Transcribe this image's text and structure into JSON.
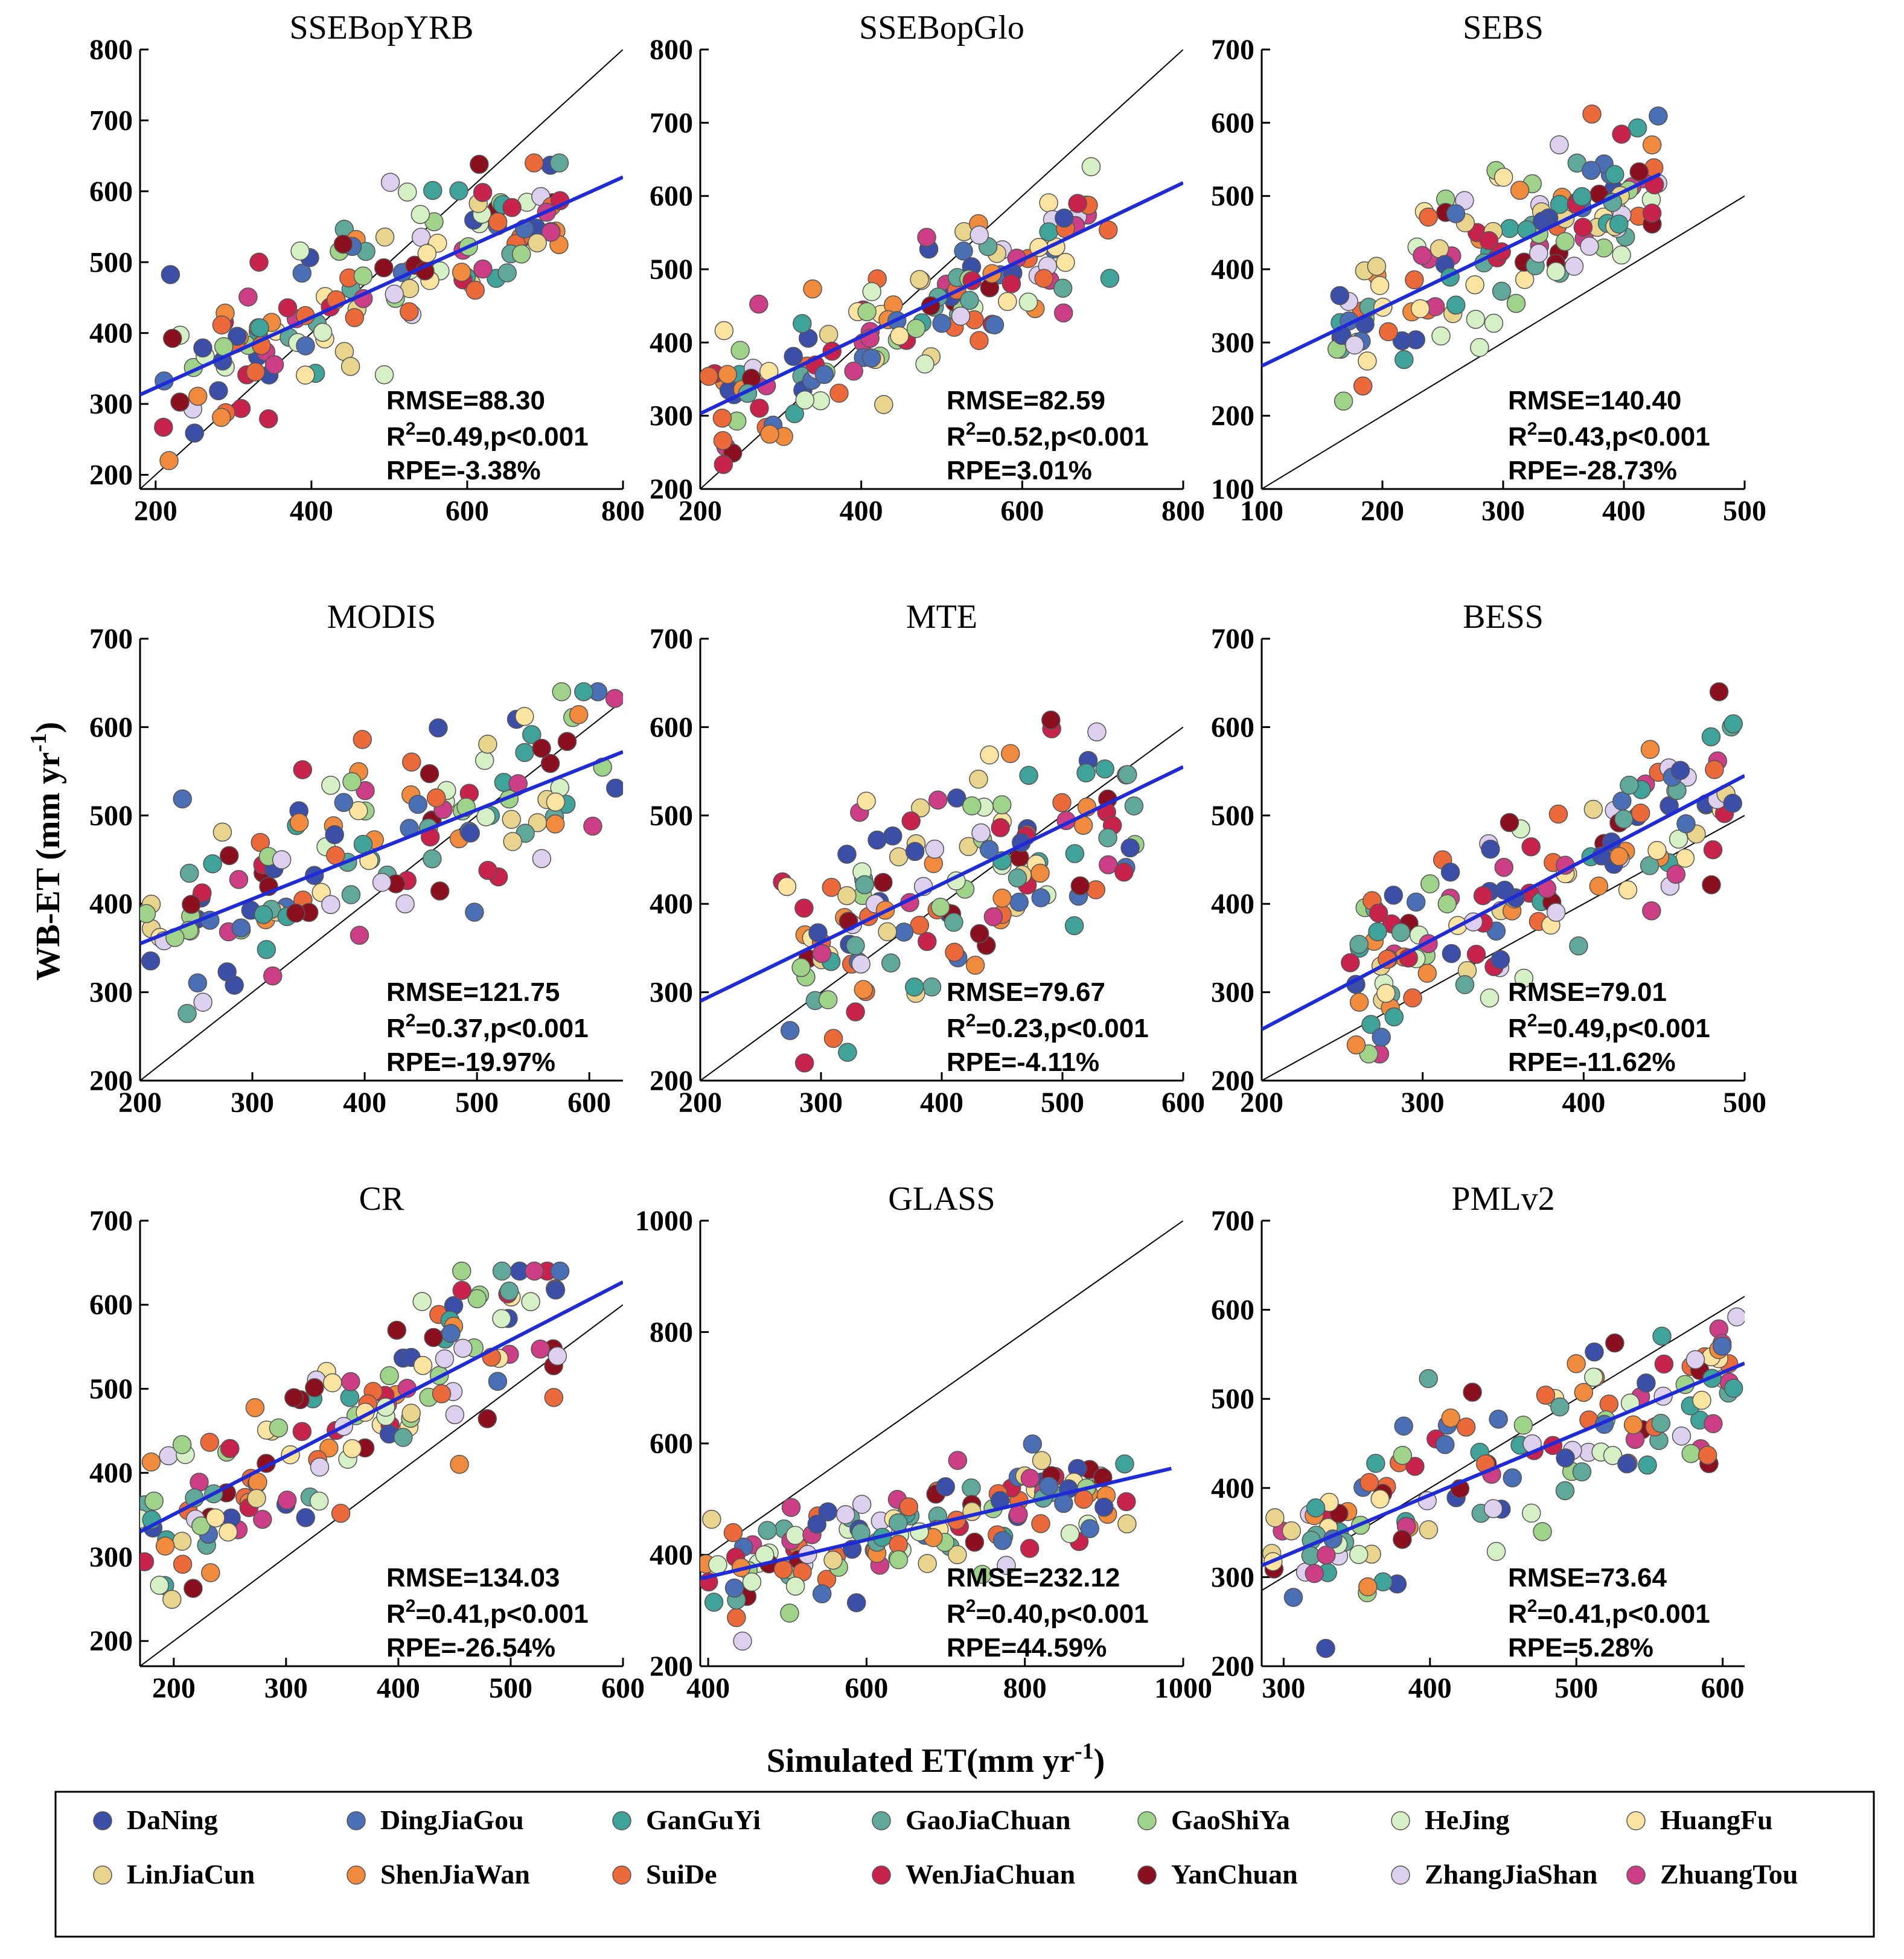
{
  "figure": {
    "xlabel": "Simulated ET(mm yr",
    "xlabel_sup": "-1",
    "xlabel_end": ")",
    "ylabel": "WB-ET (mm yr",
    "ylabel_sup": "-1",
    "ylabel_end": ")"
  },
  "legend": {
    "entries": [
      {
        "name": "DaNing",
        "color": "#3b4fa8"
      },
      {
        "name": "DingJiaGou",
        "color": "#4a6fb5"
      },
      {
        "name": "GanGuYi",
        "color": "#3fa39a"
      },
      {
        "name": "GaoJiaChuan",
        "color": "#5fa89a"
      },
      {
        "name": "GaoShiYa",
        "color": "#9fd38a"
      },
      {
        "name": "HeJing",
        "color": "#d6f0c6"
      },
      {
        "name": "HuangFu",
        "color": "#fbe3a0"
      },
      {
        "name": "LinJiaCun",
        "color": "#e8d48c"
      },
      {
        "name": "ShenJiaWan",
        "color": "#f08a3c"
      },
      {
        "name": "SuiDe",
        "color": "#ec6a3a"
      },
      {
        "name": "WenJiaChuan",
        "color": "#c8234d"
      },
      {
        "name": "YanChuan",
        "color": "#8a1020"
      },
      {
        "name": "ZhangJiaShan",
        "color": "#dcd0ee"
      },
      {
        "name": "ZhuangTou",
        "color": "#cc3f87"
      }
    ]
  },
  "chart_data": [
    {
      "type": "scatter",
      "title": "SSEBopYRB",
      "xlim": [
        180,
        800
      ],
      "ylim": [
        180,
        800
      ],
      "xticks": [
        200,
        400,
        600,
        800
      ],
      "yticks": [
        200,
        300,
        400,
        500,
        600,
        700,
        800
      ],
      "fit": {
        "x1": 180,
        "y1": 313,
        "x2": 800,
        "y2": 620
      },
      "stats": {
        "rmse": "RMSE=88.30",
        "r2_prefix": "R",
        "r2_sup": "2",
        "r2_rest": "=0.49,p<0.001",
        "rpe": "RPE=-3.38%"
      },
      "seed": 11,
      "n": 140,
      "xr": [
        180,
        720
      ],
      "yr": [
        220,
        640
      ],
      "noise": 75,
      "fit_slope": 0.495,
      "fit_intercept": 224
    },
    {
      "type": "scatter",
      "title": "SSEBopGlo",
      "xlim": [
        200,
        800
      ],
      "ylim": [
        200,
        800
      ],
      "xticks": [
        200,
        400,
        600,
        800
      ],
      "yticks": [
        200,
        300,
        400,
        500,
        600,
        700,
        800
      ],
      "fit": {
        "x1": 200,
        "y1": 303,
        "x2": 800,
        "y2": 618
      },
      "stats": {
        "rmse": "RMSE=82.59",
        "r2_prefix": "R",
        "r2_sup": "2",
        "r2_rest": "=0.52,p<0.001",
        "rpe": "RPE=3.01%"
      },
      "seed": 23,
      "n": 140,
      "xr": [
        210,
        710
      ],
      "yr": [
        220,
        640
      ],
      "noise": 70,
      "fit_slope": 0.525,
      "fit_intercept": 198
    },
    {
      "type": "scatter",
      "title": "SEBS",
      "xlim": [
        100,
        500
      ],
      "ylim": [
        100,
        700
      ],
      "xticks": [
        100,
        200,
        300,
        400,
        500
      ],
      "yticks": [
        100,
        200,
        300,
        400,
        500,
        600,
        700
      ],
      "fit": {
        "x1": 100,
        "y1": 268,
        "x2": 430,
        "y2": 530
      },
      "stats": {
        "rmse": "RMSE=140.40",
        "r2_prefix": "R",
        "r2_sup": "2",
        "r2_rest": "=0.43,p<0.001",
        "rpe": "RPE=-28.73%"
      },
      "seed": 37,
      "n": 140,
      "xr": [
        160,
        430
      ],
      "yr": [
        220,
        640
      ],
      "noise": 70,
      "fit_slope": 0.794,
      "fit_intercept": 189
    },
    {
      "type": "scatter",
      "title": "MODIS",
      "xlim": [
        200,
        630
      ],
      "ylim": [
        200,
        700
      ],
      "xticks": [
        200,
        300,
        400,
        500,
        600
      ],
      "yticks": [
        200,
        300,
        400,
        500,
        600,
        700
      ],
      "fit": {
        "x1": 200,
        "y1": 355,
        "x2": 630,
        "y2": 572
      },
      "stats": {
        "rmse": "RMSE=121.75",
        "r2_prefix": "R",
        "r2_sup": "2",
        "r2_rest": "=0.37,p<0.001",
        "rpe": "RPE=-19.97%"
      },
      "seed": 41,
      "n": 140,
      "xr": [
        200,
        625
      ],
      "yr": [
        220,
        640
      ],
      "noise": 75,
      "fit_slope": 0.505,
      "fit_intercept": 254
    },
    {
      "type": "scatter",
      "title": "MTE",
      "xlim": [
        200,
        600
      ],
      "ylim": [
        200,
        700
      ],
      "xticks": [
        200,
        300,
        400,
        500,
        600
      ],
      "yticks": [
        200,
        300,
        400,
        500,
        600,
        700
      ],
      "fit": {
        "x1": 200,
        "y1": 290,
        "x2": 600,
        "y2": 555
      },
      "stats": {
        "rmse": "RMSE=79.67",
        "r2_prefix": "R",
        "r2_sup": "2",
        "r2_rest": "=0.23,p<0.001",
        "rpe": "RPE=-4.11%"
      },
      "seed": 53,
      "n": 140,
      "xr": [
        260,
        560
      ],
      "yr": [
        220,
        640
      ],
      "noise": 85,
      "fit_slope": 0.662,
      "fit_intercept": 158
    },
    {
      "type": "scatter",
      "title": "BESS",
      "xlim": [
        200,
        500
      ],
      "ylim": [
        200,
        700
      ],
      "xticks": [
        200,
        300,
        400,
        500
      ],
      "yticks": [
        200,
        300,
        400,
        500,
        600,
        700
      ],
      "fit": {
        "x1": 200,
        "y1": 258,
        "x2": 500,
        "y2": 545
      },
      "stats": {
        "rmse": "RMSE=79.01",
        "r2_prefix": "R",
        "r2_sup": "2",
        "r2_rest": "=0.49,p<0.001",
        "rpe": "RPE=-11.62%"
      },
      "seed": 67,
      "n": 140,
      "xr": [
        255,
        495
      ],
      "yr": [
        220,
        640
      ],
      "noise": 65,
      "fit_slope": 0.957,
      "fit_intercept": 67
    },
    {
      "type": "scatter",
      "title": "CR",
      "xlim": [
        170,
        600
      ],
      "ylim": [
        170,
        700
      ],
      "xticks": [
        200,
        300,
        400,
        500,
        600
      ],
      "yticks": [
        200,
        300,
        400,
        500,
        600,
        700
      ],
      "fit": {
        "x1": 170,
        "y1": 330,
        "x2": 600,
        "y2": 627
      },
      "stats": {
        "rmse": "RMSE=134.03",
        "r2_prefix": "R",
        "r2_sup": "2",
        "r2_rest": "=0.41,p<0.001",
        "rpe": "RPE=-26.54%"
      },
      "seed": 71,
      "n": 140,
      "xr": [
        170,
        545
      ],
      "yr": [
        220,
        640
      ],
      "noise": 70,
      "fit_slope": 0.69,
      "fit_intercept": 213
    },
    {
      "type": "scatter",
      "title": "GLASS",
      "xlim": [
        390,
        1000
      ],
      "ylim": [
        200,
        1000
      ],
      "xticks": [
        400,
        600,
        800,
        1000
      ],
      "yticks": [
        200,
        400,
        600,
        800,
        1000
      ],
      "fit": {
        "x1": 390,
        "y1": 357,
        "x2": 985,
        "y2": 555
      },
      "stats": {
        "rmse": "RMSE=232.12",
        "r2_prefix": "R",
        "r2_sup": "2",
        "r2_rest": "=0.40,p<0.001",
        "rpe": "RPE=44.59%"
      },
      "seed": 83,
      "n": 140,
      "xr": [
        395,
        930
      ],
      "yr": [
        220,
        640
      ],
      "noise": 65,
      "fit_slope": 0.333,
      "fit_intercept": 227
    },
    {
      "type": "scatter",
      "title": "PMLv2",
      "xlim": [
        285,
        615
      ],
      "ylim": [
        200,
        700
      ],
      "xticks": [
        300,
        400,
        500,
        600
      ],
      "yticks": [
        200,
        300,
        400,
        500,
        600,
        700
      ],
      "fit": {
        "x1": 285,
        "y1": 313,
        "x2": 615,
        "y2": 540
      },
      "stats": {
        "rmse": "RMSE=73.64",
        "r2_prefix": "R",
        "r2_sup": "2",
        "r2_rest": "=0.41,p<0.001",
        "rpe": "RPE=5.28%"
      },
      "seed": 97,
      "n": 140,
      "xr": [
        290,
        610
      ],
      "yr": [
        220,
        640
      ],
      "noise": 65,
      "fit_slope": 0.688,
      "fit_intercept": 117
    }
  ]
}
